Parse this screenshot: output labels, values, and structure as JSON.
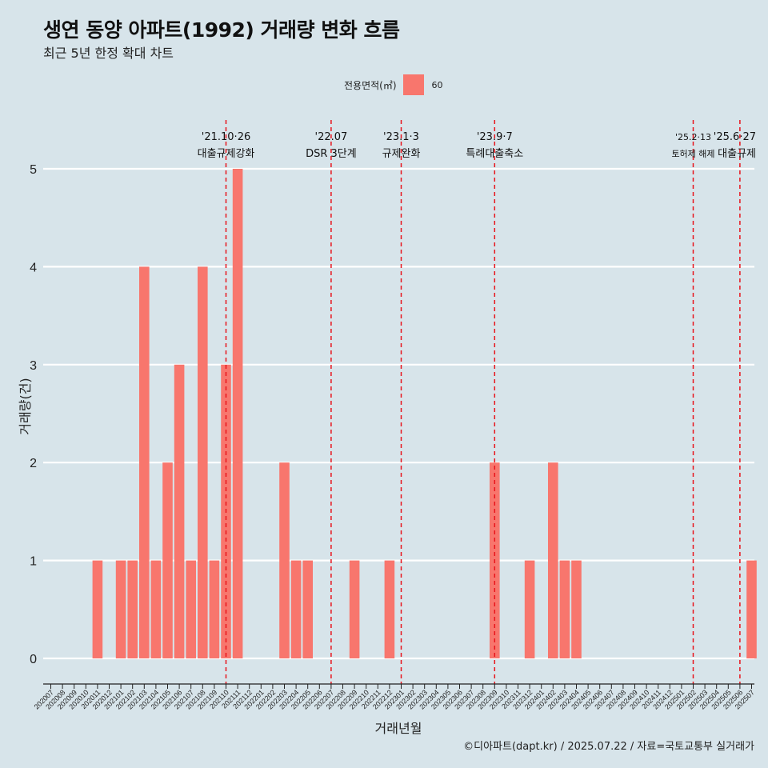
{
  "title": "생연 동양 아파트(1992) 거래량 변화 흐름",
  "subtitle": "최근 5년 한정 확대 차트",
  "caption": "©디아파트(dapt.kr) / 2025.07.22 / 자료=국토교통부 실거래가",
  "legend": {
    "title": "전용면적(㎡)",
    "label": "60"
  },
  "colors": {
    "bar": "#f8766d",
    "background": "#d7e4ea",
    "grid": "#ffffff",
    "event_line": "#e8141c"
  },
  "chart_data": {
    "type": "bar",
    "xlabel": "거래년월",
    "ylabel": "거래량(건)",
    "ylim": [
      0,
      5
    ],
    "yticks": [
      0,
      1,
      2,
      3,
      4,
      5
    ],
    "grid": true,
    "legend_position": "top",
    "categories": [
      "202007",
      "202008",
      "202009",
      "202010",
      "202011",
      "202012",
      "202101",
      "202102",
      "202103",
      "202104",
      "202105",
      "202106",
      "202107",
      "202108",
      "202109",
      "202110",
      "202111",
      "202112",
      "202201",
      "202202",
      "202203",
      "202204",
      "202205",
      "202206",
      "202207",
      "202208",
      "202209",
      "202210",
      "202211",
      "202212",
      "202301",
      "202302",
      "202303",
      "202304",
      "202305",
      "202306",
      "202307",
      "202308",
      "202309",
      "202310",
      "202311",
      "202312",
      "202401",
      "202402",
      "202403",
      "202404",
      "202405",
      "202406",
      "202407",
      "202408",
      "202409",
      "202410",
      "202411",
      "202412",
      "202501",
      "202502",
      "202503",
      "202504",
      "202505",
      "202506",
      "202507"
    ],
    "series": [
      {
        "name": "60",
        "values": [
          0,
          0,
          0,
          0,
          1,
          0,
          1,
          1,
          4,
          1,
          2,
          3,
          1,
          4,
          1,
          3,
          5,
          0,
          0,
          0,
          2,
          1,
          1,
          0,
          0,
          0,
          1,
          0,
          0,
          1,
          0,
          0,
          0,
          0,
          0,
          0,
          0,
          0,
          2,
          0,
          0,
          1,
          0,
          2,
          1,
          1,
          0,
          0,
          0,
          0,
          0,
          0,
          0,
          0,
          0,
          0,
          0,
          0,
          0,
          0,
          1
        ]
      }
    ],
    "events": [
      {
        "date": "202110",
        "label1": "'21.10·26",
        "label2": "대출규제강화"
      },
      {
        "date": "202207",
        "label1": "'22.07",
        "label2": "DSR 3단계"
      },
      {
        "date": "202301",
        "label1": "'23.1·3",
        "label2": "규제완화"
      },
      {
        "date": "202309",
        "label1": "'23.9·7",
        "label2": "특례대출축소"
      },
      {
        "date": "202502",
        "label1": "'25.2·13",
        "label2": "토허제 해제"
      },
      {
        "date": "202506",
        "label1": "'25.6·27",
        "label2": "대출규제"
      }
    ]
  }
}
